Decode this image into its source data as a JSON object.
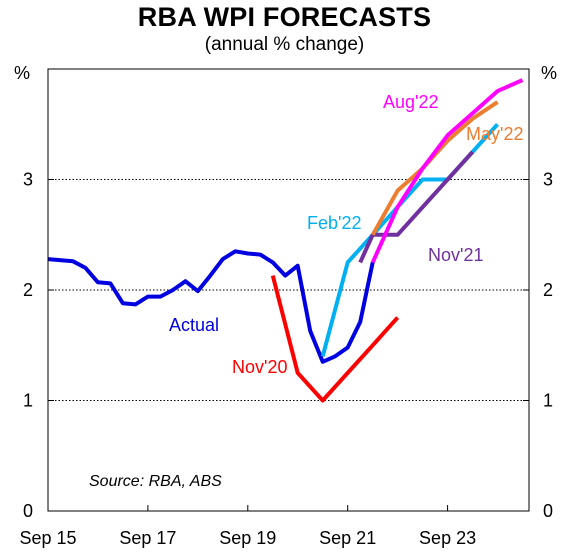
{
  "title": "RBA WPI FORECASTS",
  "subtitle": "(annual % change)",
  "chart_data": {
    "type": "line",
    "title": "RBA WPI FORECASTS",
    "subtitle": "(annual % change)",
    "y_unit_left": "%",
    "y_unit_right": "%",
    "ylim": [
      0,
      4
    ],
    "y_ticks": [
      0,
      1,
      2,
      3
    ],
    "xlim": [
      2015.67,
      2025.3
    ],
    "x_ticks": [
      {
        "value": 2015.67,
        "label": "Sep 15"
      },
      {
        "value": 2017.67,
        "label": "Sep 17"
      },
      {
        "value": 2019.67,
        "label": "Sep 19"
      },
      {
        "value": 2021.67,
        "label": "Sep 21"
      },
      {
        "value": 2023.67,
        "label": "Sep 23"
      }
    ],
    "grid": "horizontal dotted",
    "source": "Source: RBA, ABS",
    "series": [
      {
        "name": "Actual",
        "color": "#0000e0",
        "x": [
          2015.67,
          2016.17,
          2016.42,
          2016.67,
          2016.92,
          2017.17,
          2017.42,
          2017.67,
          2017.92,
          2018.17,
          2018.42,
          2018.67,
          2018.92,
          2019.17,
          2019.42,
          2019.67,
          2019.92,
          2020.17,
          2020.42,
          2020.67,
          2020.92,
          2021.17,
          2021.42,
          2021.67,
          2021.92,
          2022.17
        ],
        "y": [
          2.28,
          2.26,
          2.2,
          2.07,
          2.06,
          1.88,
          1.87,
          1.94,
          1.94,
          2.0,
          2.08,
          1.99,
          2.13,
          2.28,
          2.35,
          2.33,
          2.32,
          2.25,
          2.13,
          2.22,
          1.63,
          1.35,
          1.4,
          1.48,
          1.71,
          2.25
        ]
      },
      {
        "name": "Nov'20",
        "color": "#ff0000",
        "x": [
          2020.17,
          2020.67,
          2021.17,
          2021.67,
          2022.17,
          2022.67
        ],
        "y": [
          2.13,
          1.25,
          1.0,
          1.25,
          1.5,
          1.75
        ]
      },
      {
        "name": "Feb'22",
        "color": "#00b0f0",
        "x": [
          2021.17,
          2021.67,
          2022.17,
          2022.67,
          2023.17,
          2023.67,
          2024.17,
          2024.67
        ],
        "y": [
          1.4,
          2.25,
          2.5,
          2.75,
          3.0,
          3.0,
          3.25,
          3.5
        ]
      },
      {
        "name": "Nov'21",
        "color": "#7030a0",
        "x": [
          2021.92,
          2022.17,
          2022.67,
          2023.17,
          2023.67,
          2024.17
        ],
        "y": [
          2.25,
          2.5,
          2.5,
          2.75,
          3.0,
          3.25
        ]
      },
      {
        "name": "May'22",
        "color": "#ed7d31",
        "x": [
          2022.17,
          2022.67,
          2023.17,
          2023.67,
          2024.17,
          2024.67
        ],
        "y": [
          2.5,
          2.9,
          3.1,
          3.35,
          3.55,
          3.7
        ]
      },
      {
        "name": "Aug'22",
        "color": "#ff00ff",
        "x": [
          2022.17,
          2022.67,
          2023.17,
          2023.67,
          2024.17,
          2024.67,
          2025.17
        ],
        "y": [
          2.25,
          2.75,
          3.1,
          3.4,
          3.6,
          3.8,
          3.9
        ]
      }
    ]
  }
}
